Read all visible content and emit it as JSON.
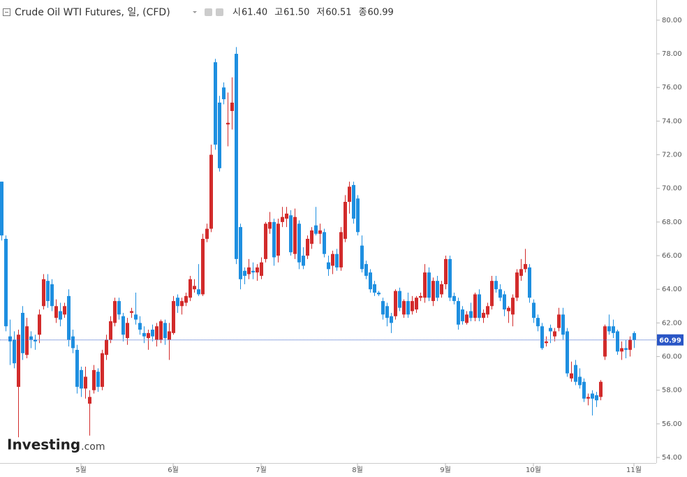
{
  "chart_data": {
    "type": "candlestick",
    "title": "Crude Oil WTI Futures, 일, (CFD)",
    "quote": [
      {
        "label": "시",
        "value": "61.40"
      },
      {
        "label": "고",
        "value": "61.50"
      },
      {
        "label": "저",
        "value": "60.51"
      },
      {
        "label": "종",
        "value": "60.99"
      }
    ],
    "last_price": {
      "value": 60.99,
      "label": "60.99"
    },
    "watermark": "Investing",
    "watermark_suffix": ".com",
    "up_color": "#d22b2b",
    "down_color": "#1e8fe0",
    "ylim": [
      53.67,
      81.2
    ],
    "yticks": [
      {
        "value": 54,
        "label": "54.00"
      },
      {
        "value": 56,
        "label": "56.00"
      },
      {
        "value": 58,
        "label": "58.00"
      },
      {
        "value": 60,
        "label": "60.00"
      },
      {
        "value": 62,
        "label": "62.00"
      },
      {
        "value": 64,
        "label": "64.00"
      },
      {
        "value": 66,
        "label": "66.00"
      },
      {
        "value": 68,
        "label": "68.00"
      },
      {
        "value": 70,
        "label": "70.00"
      },
      {
        "value": 72,
        "label": "72.00"
      },
      {
        "value": 74,
        "label": "74.00"
      },
      {
        "value": 76,
        "label": "76.00"
      },
      {
        "value": 78,
        "label": "78.00"
      },
      {
        "value": 80,
        "label": "80.00"
      }
    ],
    "categories": [
      null,
      null,
      null,
      null,
      null,
      null,
      null,
      null,
      null,
      null,
      null,
      null,
      null,
      null,
      null,
      null,
      null,
      null,
      null,
      "5월",
      null,
      null,
      null,
      null,
      null,
      null,
      null,
      null,
      null,
      null,
      null,
      null,
      null,
      null,
      null,
      null,
      null,
      null,
      null,
      null,
      null,
      "6월",
      null,
      null,
      null,
      null,
      null,
      null,
      null,
      null,
      null,
      null,
      null,
      null,
      null,
      null,
      null,
      null,
      null,
      null,
      null,
      null,
      "7월",
      null,
      null,
      null,
      null,
      null,
      null,
      null,
      null,
      null,
      null,
      null,
      null,
      null,
      null,
      null,
      null,
      null,
      null,
      null,
      null,
      null,
      null,
      "8월",
      null,
      null,
      null,
      null,
      null,
      null,
      null,
      null,
      null,
      null,
      null,
      null,
      null,
      null,
      null,
      null,
      null,
      null,
      null,
      null,
      "9월",
      null,
      null,
      null,
      null,
      null,
      null,
      null,
      null,
      null,
      null,
      null,
      null,
      null,
      null,
      null,
      null,
      null,
      null,
      null,
      null,
      "10월",
      null,
      null,
      null,
      null,
      null,
      null,
      null,
      null,
      null,
      null,
      null,
      null,
      null,
      null,
      null,
      null,
      null,
      null,
      null,
      null,
      null,
      null,
      null,
      "11월"
    ],
    "ohlc": [
      [
        70.4,
        70.4,
        66.9,
        67.2
      ],
      [
        67.0,
        67.2,
        61.5,
        61.8
      ],
      [
        61.2,
        62.2,
        59.5,
        60.9
      ],
      [
        61.0,
        61.5,
        59.3,
        59.6
      ],
      [
        58.2,
        61.6,
        55.2,
        61.3
      ],
      [
        62.6,
        63.0,
        59.8,
        60.2
      ],
      [
        60.1,
        62.3,
        59.9,
        61.8
      ],
      [
        61.2,
        61.5,
        60.5,
        61.0
      ],
      [
        61.0,
        61.3,
        60.4,
        60.9
      ],
      [
        61.3,
        62.8,
        60.8,
        62.5
      ],
      [
        63.0,
        64.9,
        62.8,
        64.6
      ],
      [
        64.5,
        64.9,
        62.9,
        63.3
      ],
      [
        64.3,
        64.6,
        62.7,
        63.0
      ],
      [
        62.3,
        63.4,
        62.0,
        63.0
      ],
      [
        62.7,
        63.2,
        61.8,
        62.2
      ],
      [
        62.5,
        63.2,
        62.3,
        63.0
      ],
      [
        63.6,
        64.0,
        60.6,
        61.0
      ],
      [
        61.2,
        61.6,
        60.2,
        60.5
      ],
      [
        60.4,
        60.7,
        57.8,
        58.2
      ],
      [
        59.2,
        59.4,
        57.6,
        58.1
      ],
      [
        58.1,
        59.4,
        57.5,
        58.8
      ],
      [
        57.2,
        58.0,
        55.3,
        57.6
      ],
      [
        58.0,
        59.5,
        57.8,
        59.2
      ],
      [
        59.1,
        59.3,
        57.9,
        58.2
      ],
      [
        58.2,
        60.4,
        58.0,
        60.2
      ],
      [
        60.1,
        61.3,
        59.8,
        61.0
      ],
      [
        61.0,
        62.4,
        60.8,
        62.1
      ],
      [
        62.0,
        63.5,
        61.8,
        63.3
      ],
      [
        63.3,
        63.5,
        62.2,
        62.5
      ],
      [
        62.4,
        62.6,
        60.9,
        61.3
      ],
      [
        61.1,
        62.3,
        60.7,
        62.0
      ],
      [
        62.6,
        62.9,
        62.3,
        62.7
      ],
      [
        62.5,
        63.8,
        61.9,
        62.2
      ],
      [
        62.0,
        62.4,
        61.3,
        61.6
      ],
      [
        61.4,
        61.8,
        60.8,
        61.2
      ],
      [
        61.1,
        61.6,
        60.4,
        61.4
      ],
      [
        61.6,
        61.9,
        60.9,
        61.2
      ],
      [
        61.0,
        62.0,
        60.6,
        61.8
      ],
      [
        61.0,
        62.2,
        60.8,
        62.1
      ],
      [
        62.0,
        62.2,
        60.7,
        61.1
      ],
      [
        61.0,
        62.0,
        59.8,
        61.5
      ],
      [
        61.4,
        63.6,
        61.3,
        63.3
      ],
      [
        63.5,
        63.7,
        62.6,
        63.0
      ],
      [
        63.0,
        63.5,
        62.5,
        63.3
      ],
      [
        63.2,
        63.8,
        63.0,
        63.6
      ],
      [
        63.5,
        64.8,
        63.3,
        64.6
      ],
      [
        64.0,
        64.6,
        63.8,
        64.2
      ],
      [
        64.0,
        65.5,
        63.6,
        63.7
      ],
      [
        63.7,
        67.3,
        63.6,
        67.0
      ],
      [
        67.0,
        67.9,
        66.8,
        67.6
      ],
      [
        67.6,
        72.6,
        67.4,
        72.0
      ],
      [
        77.5,
        77.7,
        72.3,
        72.6
      ],
      [
        75.1,
        75.5,
        71.0,
        71.2
      ],
      [
        76.0,
        76.3,
        75.0,
        75.3
      ],
      [
        73.8,
        75.7,
        72.5,
        73.9
      ],
      [
        74.6,
        76.6,
        73.5,
        75.1
      ],
      [
        78.0,
        78.4,
        65.5,
        65.8
      ],
      [
        67.7,
        67.9,
        64.0,
        64.6
      ],
      [
        65.1,
        65.3,
        64.3,
        64.8
      ],
      [
        64.9,
        65.8,
        64.6,
        65.3
      ],
      [
        65.1,
        65.6,
        64.6,
        65.0
      ],
      [
        65.0,
        65.5,
        64.5,
        65.3
      ],
      [
        64.8,
        65.9,
        64.6,
        65.6
      ],
      [
        65.8,
        68.0,
        65.6,
        67.9
      ],
      [
        67.6,
        68.6,
        67.3,
        68.0
      ],
      [
        68.0,
        68.2,
        65.4,
        65.9
      ],
      [
        66.0,
        68.2,
        65.6,
        67.9
      ],
      [
        68.0,
        68.9,
        67.7,
        68.3
      ],
      [
        68.2,
        68.9,
        67.7,
        68.5
      ],
      [
        68.4,
        68.7,
        66.0,
        66.2
      ],
      [
        66.1,
        68.8,
        65.8,
        68.3
      ],
      [
        67.9,
        68.1,
        65.2,
        65.6
      ],
      [
        66.0,
        66.5,
        65.2,
        65.4
      ],
      [
        66.0,
        67.2,
        65.8,
        67.0
      ],
      [
        66.7,
        67.7,
        66.4,
        67.5
      ],
      [
        67.8,
        68.9,
        67.2,
        67.3
      ],
      [
        67.3,
        67.9,
        66.7,
        67.5
      ],
      [
        67.4,
        67.6,
        65.9,
        66.1
      ],
      [
        65.6,
        66.0,
        64.8,
        65.2
      ],
      [
        65.4,
        66.3,
        64.9,
        66.1
      ],
      [
        66.1,
        66.4,
        65.1,
        65.3
      ],
      [
        65.3,
        67.7,
        65.1,
        67.4
      ],
      [
        67.0,
        69.6,
        66.8,
        69.2
      ],
      [
        69.2,
        70.4,
        68.5,
        70.1
      ],
      [
        70.2,
        70.4,
        67.9,
        68.2
      ],
      [
        69.4,
        69.6,
        67.2,
        67.4
      ],
      [
        66.6,
        67.2,
        65.0,
        65.2
      ],
      [
        65.5,
        65.7,
        64.6,
        64.8
      ],
      [
        65.0,
        65.2,
        63.8,
        64.0
      ],
      [
        64.3,
        64.5,
        63.6,
        63.8
      ],
      [
        63.8,
        63.9,
        63.6,
        63.7
      ],
      [
        63.3,
        63.5,
        62.2,
        62.5
      ],
      [
        63.0,
        63.2,
        61.8,
        62.3
      ],
      [
        62.4,
        62.6,
        61.4,
        62.0
      ],
      [
        62.4,
        64.0,
        62.2,
        63.9
      ],
      [
        63.9,
        64.1,
        62.7,
        62.9
      ],
      [
        62.5,
        63.4,
        62.3,
        63.3
      ],
      [
        63.3,
        63.8,
        62.3,
        62.5
      ],
      [
        62.7,
        63.6,
        62.5,
        63.3
      ],
      [
        62.8,
        63.6,
        62.6,
        63.5
      ],
      [
        63.5,
        63.8,
        63.3,
        63.6
      ],
      [
        63.5,
        65.5,
        63.2,
        65.0
      ],
      [
        65.0,
        65.3,
        63.3,
        63.5
      ],
      [
        63.3,
        64.7,
        63.0,
        64.5
      ],
      [
        64.5,
        64.8,
        63.3,
        63.5
      ],
      [
        63.7,
        64.5,
        63.5,
        64.3
      ],
      [
        64.3,
        66.0,
        64.0,
        65.8
      ],
      [
        65.8,
        66.0,
        63.3,
        63.5
      ],
      [
        63.6,
        63.8,
        63.1,
        63.3
      ],
      [
        63.3,
        63.5,
        61.6,
        61.9
      ],
      [
        62.8,
        63.0,
        61.9,
        62.1
      ],
      [
        62.0,
        62.7,
        61.9,
        62.5
      ],
      [
        62.7,
        63.2,
        62.1,
        62.3
      ],
      [
        62.3,
        63.8,
        62.1,
        63.7
      ],
      [
        63.7,
        64.0,
        62.1,
        62.3
      ],
      [
        62.3,
        62.8,
        62.0,
        62.6
      ],
      [
        62.5,
        63.2,
        62.3,
        63.0
      ],
      [
        63.0,
        64.8,
        62.8,
        64.5
      ],
      [
        64.5,
        64.8,
        63.8,
        64.0
      ],
      [
        64.0,
        64.3,
        63.3,
        63.5
      ],
      [
        63.7,
        63.9,
        62.4,
        62.8
      ],
      [
        62.7,
        63.0,
        62.0,
        62.9
      ],
      [
        62.5,
        63.7,
        61.8,
        63.5
      ],
      [
        63.5,
        65.2,
        63.3,
        65.0
      ],
      [
        64.8,
        65.8,
        64.5,
        65.2
      ],
      [
        65.2,
        66.4,
        65.0,
        65.5
      ],
      [
        65.3,
        65.5,
        63.2,
        63.5
      ],
      [
        63.2,
        63.4,
        62.0,
        62.3
      ],
      [
        62.3,
        62.5,
        61.5,
        61.8
      ],
      [
        61.8,
        62.0,
        60.4,
        60.5
      ],
      [
        60.8,
        61.2,
        60.6,
        60.9
      ],
      [
        61.7,
        61.9,
        60.8,
        61.5
      ],
      [
        61.2,
        61.7,
        60.9,
        61.5
      ],
      [
        61.7,
        62.9,
        61.5,
        62.5
      ],
      [
        62.5,
        62.9,
        61.0,
        61.3
      ],
      [
        61.5,
        61.7,
        58.8,
        59.0
      ],
      [
        58.7,
        59.7,
        58.5,
        59.0
      ],
      [
        59.5,
        59.8,
        58.3,
        58.5
      ],
      [
        58.8,
        59.3,
        58.1,
        58.3
      ],
      [
        58.5,
        58.7,
        57.3,
        57.5
      ],
      [
        57.5,
        57.8,
        57.1,
        57.6
      ],
      [
        57.8,
        58.0,
        56.5,
        57.5
      ],
      [
        57.7,
        57.9,
        57.0,
        57.4
      ],
      [
        57.6,
        58.6,
        57.4,
        58.5
      ],
      [
        60.0,
        61.9,
        59.8,
        61.8
      ],
      [
        61.8,
        62.5,
        61.3,
        61.5
      ],
      [
        61.8,
        62.2,
        61.1,
        61.4
      ],
      [
        61.5,
        61.6,
        60.1,
        60.3
      ],
      [
        60.3,
        60.9,
        59.8,
        60.5
      ],
      [
        60.5,
        61.0,
        59.9,
        60.4
      ],
      [
        60.4,
        61.2,
        60.0,
        61.0
      ],
      [
        61.4,
        61.5,
        60.51,
        60.99
      ]
    ]
  }
}
